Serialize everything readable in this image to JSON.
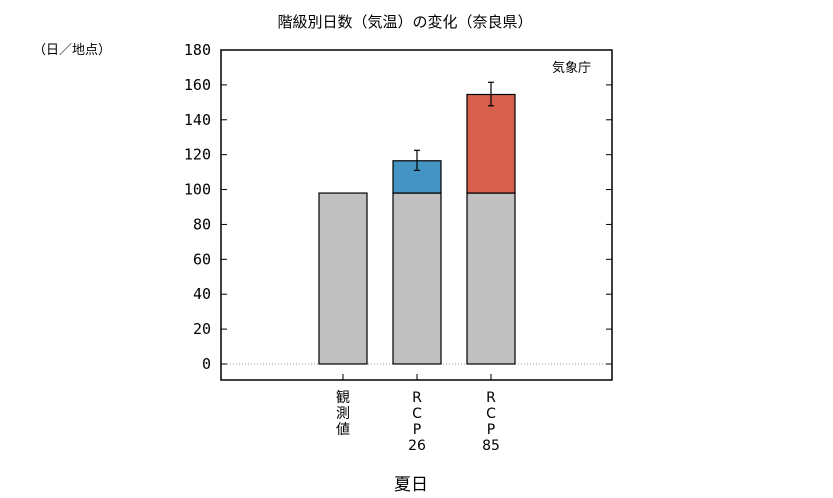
{
  "chart_data": {
    "type": "bar",
    "title": "階級別日数（気温）の変化（奈良県）",
    "ylabel": "（日／地点）",
    "xlabel": "夏日",
    "annotation": "気象庁",
    "ylim": [
      0,
      180
    ],
    "yticks": [
      0,
      20,
      40,
      60,
      80,
      100,
      120,
      140,
      160,
      180
    ],
    "categories": [
      {
        "label": "観測値",
        "lines": [
          "観",
          "測",
          "値"
        ]
      },
      {
        "label": "RCP26",
        "lines": [
          "R",
          "C",
          "P",
          "26"
        ]
      },
      {
        "label": "RCP85",
        "lines": [
          "R",
          "C",
          "P",
          "85"
        ]
      }
    ],
    "series": [
      {
        "values": [
          98,
          98,
          98
        ],
        "colors": [
          "#c0c0c0",
          "#c0c0c0",
          "#c0c0c0"
        ]
      },
      {
        "values": [
          0,
          18.5,
          56.5
        ],
        "colors": [
          "#c0c0c0",
          "#4393c3",
          "#d6604d"
        ]
      }
    ],
    "error_bars": [
      null,
      {
        "center": 116.5,
        "low": 111,
        "high": 122.5
      },
      {
        "center": 154.5,
        "low": 148,
        "high": 161.5
      }
    ],
    "zero_line": "dotted",
    "grid": false
  }
}
